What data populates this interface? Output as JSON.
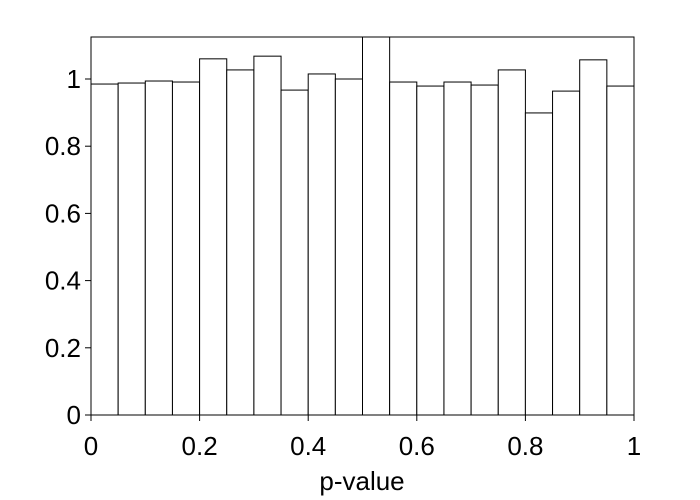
{
  "chart_data": {
    "type": "histogram",
    "xlabel": "p-value",
    "bins": [
      0,
      0.05,
      0.1,
      0.15,
      0.2,
      0.25,
      0.3,
      0.35,
      0.4,
      0.45,
      0.5,
      0.55,
      0.6,
      0.65,
      0.7,
      0.75,
      0.8,
      0.85,
      0.9,
      0.95,
      1
    ],
    "counts": [
      0.985,
      0.988,
      0.994,
      0.991,
      1.06,
      1.027,
      1.068,
      0.967,
      1.015,
      1.0,
      1.15,
      0.991,
      0.979,
      0.991,
      0.982,
      1.027,
      0.899,
      0.964,
      1.057,
      0.979
    ],
    "color": "#ffffff",
    "xlim": [
      0,
      1
    ],
    "xticks": [
      0,
      0.2,
      0.4,
      0.6,
      0.8,
      1
    ],
    "ylim": [
      0,
      1.125
    ],
    "yticks": [
      0,
      0.2,
      0.4,
      0.6,
      0.8,
      1
    ]
  }
}
